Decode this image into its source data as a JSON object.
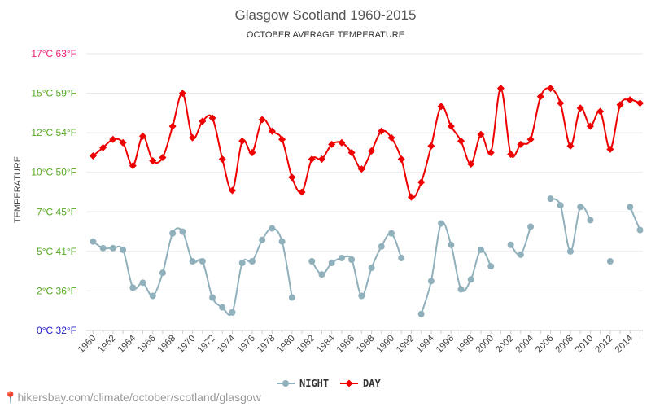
{
  "chart_data": {
    "type": "line",
    "title": "Glasgow Scotland 1960-2015",
    "subtitle": "OCTOBER AVERAGE TEMPERATURE",
    "ylabel": "TEMPERATURE",
    "ylim": [
      0,
      17
    ],
    "y_ticks": [
      {
        "value": 0,
        "label": "0°C 32°F",
        "color": "#2222cc"
      },
      {
        "value": 2.4,
        "label": "2°C 36°F",
        "color": "#55aa22"
      },
      {
        "value": 4.8,
        "label": "5°C 41°F",
        "color": "#55aa22"
      },
      {
        "value": 7.2,
        "label": "7°C 45°F",
        "color": "#55aa22"
      },
      {
        "value": 9.6,
        "label": "10°C 50°F",
        "color": "#55aa22"
      },
      {
        "value": 12.0,
        "label": "12°C 54°F",
        "color": "#55aa22"
      },
      {
        "value": 14.4,
        "label": "15°C 59°F",
        "color": "#55aa22"
      },
      {
        "value": 16.8,
        "label": "17°C 63°F",
        "color": "#ee2277"
      }
    ],
    "x_tick_labels": [
      "1960",
      "1962",
      "1964",
      "1966",
      "1968",
      "1970",
      "1972",
      "1974",
      "1976",
      "1978",
      "1980",
      "1982",
      "1984",
      "1986",
      "1988",
      "1990",
      "1992",
      "1994",
      "1996",
      "1998",
      "2000",
      "2002",
      "2004",
      "2006",
      "2008",
      "2010",
      "2012",
      "2014"
    ],
    "x": [
      1960,
      1961,
      1962,
      1963,
      1964,
      1965,
      1966,
      1967,
      1968,
      1969,
      1970,
      1971,
      1972,
      1973,
      1974,
      1975,
      1976,
      1977,
      1978,
      1979,
      1980,
      1981,
      1982,
      1983,
      1984,
      1985,
      1986,
      1987,
      1988,
      1989,
      1990,
      1991,
      1992,
      1993,
      1994,
      1995,
      1996,
      1997,
      1998,
      1999,
      2000,
      2001,
      2002,
      2003,
      2004,
      2005,
      2006,
      2007,
      2008,
      2009,
      2010,
      2011,
      2012,
      2013,
      2014,
      2015
    ],
    "grid": true,
    "legend_position": "bottom",
    "series": [
      {
        "name": "NIGHT",
        "color": "#90b0bb",
        "values": [
          5.4,
          5.0,
          5.0,
          4.9,
          2.6,
          2.9,
          2.1,
          3.5,
          5.9,
          6.0,
          4.2,
          4.2,
          2.0,
          1.4,
          1.1,
          4.1,
          4.2,
          5.5,
          6.2,
          5.4,
          2.0,
          null,
          4.2,
          3.4,
          4.1,
          4.4,
          4.3,
          2.1,
          3.8,
          5.1,
          5.9,
          4.4,
          null,
          1.0,
          3.0,
          6.5,
          5.2,
          2.5,
          3.1,
          4.9,
          3.9,
          null,
          5.2,
          4.6,
          6.3,
          null,
          8.0,
          7.6,
          4.8,
          7.5,
          6.7,
          null,
          4.2,
          null,
          7.5,
          6.1
        ]
      },
      {
        "name": "DAY",
        "color": "#ee0000",
        "values": [
          10.6,
          11.1,
          11.6,
          11.4,
          10.0,
          11.8,
          10.3,
          10.5,
          12.4,
          14.4,
          11.7,
          12.7,
          12.9,
          10.4,
          8.5,
          11.5,
          10.8,
          12.8,
          12.1,
          11.6,
          9.3,
          8.4,
          10.4,
          10.4,
          11.3,
          11.4,
          10.8,
          9.8,
          10.9,
          12.1,
          11.7,
          10.4,
          8.1,
          9.0,
          11.2,
          13.6,
          12.4,
          11.5,
          10.1,
          11.9,
          10.8,
          14.7,
          10.7,
          11.3,
          11.6,
          14.2,
          14.7,
          13.8,
          11.2,
          13.5,
          12.4,
          13.3,
          11.0,
          13.7,
          14.0,
          13.8
        ]
      }
    ]
  },
  "footer": {
    "pin_icon": "map-pin-icon",
    "text": "hikersbay.com/climate/october/scotland/glasgow"
  }
}
